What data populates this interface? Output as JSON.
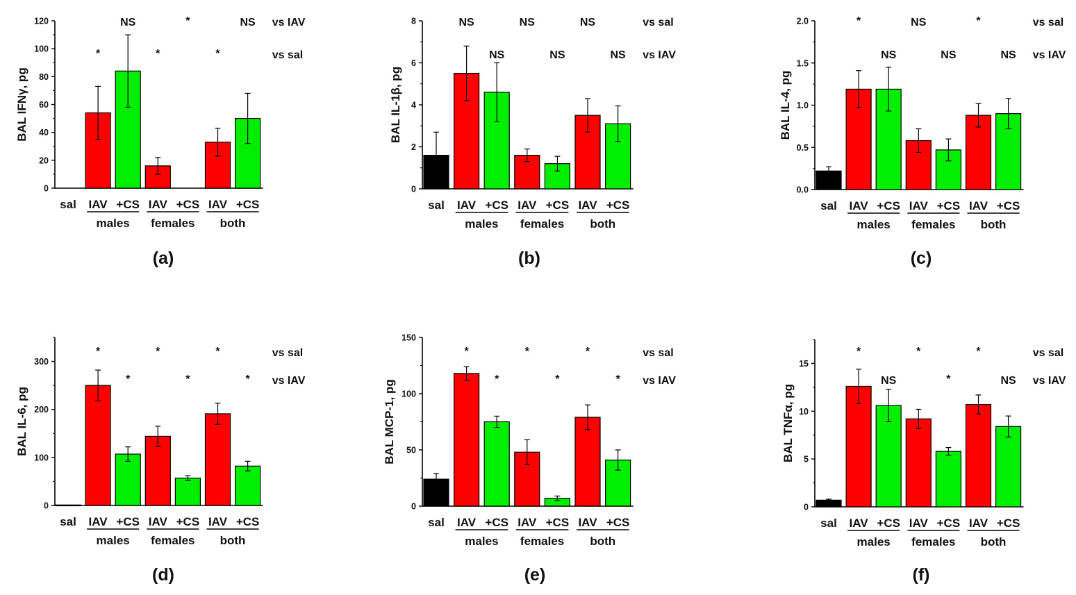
{
  "chart_data": [
    {
      "type": "bar",
      "panel_label": "(a)",
      "ylabel": "BAL IFNγ, pg",
      "ylim": [
        0,
        120
      ],
      "yticks": [
        0,
        20,
        40,
        60,
        80,
        100,
        120
      ],
      "yticklabels": [
        "0",
        "20",
        "40",
        "60",
        "80",
        "100",
        "120"
      ],
      "xlabels": [
        "sal",
        "IAV",
        "+CS",
        "IAV",
        "+CS",
        "IAV",
        "+CS"
      ],
      "group_labels": [
        "males",
        "females",
        "both"
      ],
      "bars": [
        {
          "name": "sal",
          "value": 0,
          "error": 0,
          "color": "#000000"
        },
        {
          "name": "IAV males",
          "value": 54,
          "error": 19,
          "color": "#ff0000"
        },
        {
          "name": "+CS males",
          "value": 84,
          "error": 26,
          "color": "#00ee00"
        },
        {
          "name": "IAV females",
          "value": 16,
          "error": 6,
          "color": "#ff0000"
        },
        {
          "name": "+CS females",
          "value": 0,
          "error": 0,
          "color": "#00ee00"
        },
        {
          "name": "IAV both",
          "value": 33,
          "error": 10,
          "color": "#ff0000"
        },
        {
          "name": "+CS both",
          "value": 50,
          "error": 18,
          "color": "#00ee00"
        }
      ],
      "sig_rows": [
        {
          "legend": "vs IAV",
          "marks": [
            "",
            "",
            "NS",
            "",
            "*",
            "",
            "NS"
          ]
        },
        {
          "legend": "vs sal",
          "marks": [
            "",
            "*",
            "",
            "*",
            "",
            "*",
            ""
          ]
        }
      ]
    },
    {
      "type": "bar",
      "panel_label": "(b)",
      "ylabel": "BAL IL-1β, pg",
      "ylim": [
        0,
        8
      ],
      "yticks": [
        0,
        2,
        4,
        6,
        8
      ],
      "yticklabels": [
        "0",
        "2",
        "4",
        "6",
        "8"
      ],
      "xlabels": [
        "sal",
        "IAV",
        "+CS",
        "IAV",
        "+CS",
        "IAV",
        "+CS"
      ],
      "group_labels": [
        "males",
        "females",
        "both"
      ],
      "bars": [
        {
          "name": "sal",
          "value": 1.6,
          "error": 1.1,
          "color": "#000000"
        },
        {
          "name": "IAV males",
          "value": 5.5,
          "error": 1.3,
          "color": "#ff0000"
        },
        {
          "name": "+CS males",
          "value": 4.6,
          "error": 1.4,
          "color": "#00ee00"
        },
        {
          "name": "IAV females",
          "value": 1.6,
          "error": 0.3,
          "color": "#ff0000"
        },
        {
          "name": "+CS females",
          "value": 1.2,
          "error": 0.35,
          "color": "#00ee00"
        },
        {
          "name": "IAV both",
          "value": 3.5,
          "error": 0.8,
          "color": "#ff0000"
        },
        {
          "name": "+CS both",
          "value": 3.1,
          "error": 0.85,
          "color": "#00ee00"
        }
      ],
      "sig_rows": [
        {
          "legend": "vs sal",
          "marks": [
            "",
            "NS",
            "",
            "NS",
            "",
            "NS",
            ""
          ]
        },
        {
          "legend": "vs IAV",
          "marks": [
            "",
            "",
            "NS",
            "",
            "NS",
            "",
            "NS"
          ]
        }
      ]
    },
    {
      "type": "bar",
      "panel_label": "(c)",
      "ylabel": "BAL IL-4, pg",
      "ylim": [
        0,
        2.0
      ],
      "yticks": [
        0,
        0.5,
        1.0,
        1.5,
        2.0
      ],
      "yticklabels": [
        "0.0",
        "0.5",
        "1.0",
        "1.5",
        "2.0"
      ],
      "xlabels": [
        "sal",
        "IAV",
        "+CS",
        "IAV",
        "+CS",
        "IAV",
        "+CS"
      ],
      "group_labels": [
        "males",
        "females",
        "both"
      ],
      "bars": [
        {
          "name": "sal",
          "value": 0.22,
          "error": 0.05,
          "color": "#000000"
        },
        {
          "name": "IAV males",
          "value": 1.19,
          "error": 0.22,
          "color": "#ff0000"
        },
        {
          "name": "+CS males",
          "value": 1.19,
          "error": 0.26,
          "color": "#00ee00"
        },
        {
          "name": "IAV females",
          "value": 0.58,
          "error": 0.14,
          "color": "#ff0000"
        },
        {
          "name": "+CS females",
          "value": 0.47,
          "error": 0.13,
          "color": "#00ee00"
        },
        {
          "name": "IAV both",
          "value": 0.88,
          "error": 0.14,
          "color": "#ff0000"
        },
        {
          "name": "+CS both",
          "value": 0.9,
          "error": 0.18,
          "color": "#00ee00"
        }
      ],
      "sig_rows": [
        {
          "legend": "vs sal",
          "marks": [
            "",
            "*",
            "",
            "NS",
            "",
            "*",
            ""
          ]
        },
        {
          "legend": "vs IAV",
          "marks": [
            "",
            "",
            "NS",
            "",
            "NS",
            "",
            "NS"
          ]
        }
      ]
    },
    {
      "type": "bar",
      "panel_label": "(d)",
      "ylabel": "BAL IL-6, pg",
      "ylim": [
        0,
        350
      ],
      "yticks": [
        0,
        100,
        200,
        300
      ],
      "yticklabels": [
        "0",
        "100",
        "200",
        "300"
      ],
      "xlabels": [
        "sal",
        "IAV",
        "+CS",
        "IAV",
        "+CS",
        "IAV",
        "+CS"
      ],
      "group_labels": [
        "males",
        "females",
        "both"
      ],
      "bars": [
        {
          "name": "sal",
          "value": 1,
          "error": 0,
          "color": "#000000"
        },
        {
          "name": "IAV males",
          "value": 250,
          "error": 32,
          "color": "#ff0000"
        },
        {
          "name": "+CS males",
          "value": 107,
          "error": 15,
          "color": "#00ee00"
        },
        {
          "name": "IAV females",
          "value": 144,
          "error": 21,
          "color": "#ff0000"
        },
        {
          "name": "+CS females",
          "value": 57,
          "error": 5,
          "color": "#00ee00"
        },
        {
          "name": "IAV both",
          "value": 191,
          "error": 22,
          "color": "#ff0000"
        },
        {
          "name": "+CS both",
          "value": 82,
          "error": 10,
          "color": "#00ee00"
        }
      ],
      "sig_rows": [
        {
          "legend": "vs sal",
          "marks": [
            "",
            "*",
            "",
            "*",
            "",
            "*",
            ""
          ]
        },
        {
          "legend": "vs IAV",
          "marks": [
            "",
            "",
            "*",
            "",
            "*",
            "",
            "*"
          ]
        }
      ]
    },
    {
      "type": "bar",
      "panel_label": "(e)",
      "ylabel": "BAL MCP-1, pg",
      "ylim": [
        0,
        150
      ],
      "yticks": [
        0,
        50,
        100,
        150
      ],
      "yticklabels": [
        "0",
        "50",
        "100",
        "150"
      ],
      "xlabels": [
        "sal",
        "IAV",
        "+CS",
        "IAV",
        "+CS",
        "IAV",
        "+CS"
      ],
      "group_labels": [
        "males",
        "females",
        "both"
      ],
      "bars": [
        {
          "name": "sal",
          "value": 24,
          "error": 5,
          "color": "#000000"
        },
        {
          "name": "IAV males",
          "value": 118,
          "error": 6,
          "color": "#ff0000"
        },
        {
          "name": "+CS males",
          "value": 75,
          "error": 5,
          "color": "#00ee00"
        },
        {
          "name": "IAV females",
          "value": 48,
          "error": 11,
          "color": "#ff0000"
        },
        {
          "name": "+CS females",
          "value": 7,
          "error": 2,
          "color": "#00ee00"
        },
        {
          "name": "IAV both",
          "value": 79,
          "error": 11,
          "color": "#ff0000"
        },
        {
          "name": "+CS both",
          "value": 41,
          "error": 9,
          "color": "#00ee00"
        }
      ],
      "sig_rows": [
        {
          "legend": "vs sal",
          "marks": [
            "",
            "*",
            "",
            "*",
            "",
            "*",
            ""
          ]
        },
        {
          "legend": "vs IAV",
          "marks": [
            "",
            "",
            "*",
            "",
            "*",
            "",
            "*"
          ]
        }
      ]
    },
    {
      "type": "bar",
      "panel_label": "(f)",
      "ylabel": "BAL TNFα, pg",
      "ylim": [
        0,
        17.5
      ],
      "yticks": [
        0,
        5,
        10,
        15
      ],
      "yticklabels": [
        "0",
        "5",
        "10",
        "15"
      ],
      "xlabels": [
        "sal",
        "IAV",
        "+CS",
        "IAV",
        "+CS",
        "IAV",
        "+CS"
      ],
      "group_labels": [
        "males",
        "females",
        "both"
      ],
      "bars": [
        {
          "name": "sal",
          "value": 0.7,
          "error": 0.1,
          "color": "#000000"
        },
        {
          "name": "IAV males",
          "value": 12.6,
          "error": 1.8,
          "color": "#ff0000"
        },
        {
          "name": "+CS males",
          "value": 10.6,
          "error": 1.7,
          "color": "#00ee00"
        },
        {
          "name": "IAV females",
          "value": 9.2,
          "error": 1.0,
          "color": "#ff0000"
        },
        {
          "name": "+CS females",
          "value": 5.8,
          "error": 0.4,
          "color": "#00ee00"
        },
        {
          "name": "IAV both",
          "value": 10.7,
          "error": 1.0,
          "color": "#ff0000"
        },
        {
          "name": "+CS both",
          "value": 8.4,
          "error": 1.1,
          "color": "#00ee00"
        }
      ],
      "sig_rows": [
        {
          "legend": "vs sal",
          "marks": [
            "",
            "*",
            "",
            "*",
            "",
            "*",
            ""
          ]
        },
        {
          "legend": "vs IAV",
          "marks": [
            "",
            "",
            "NS",
            "",
            "*",
            "",
            "NS"
          ]
        }
      ]
    }
  ]
}
